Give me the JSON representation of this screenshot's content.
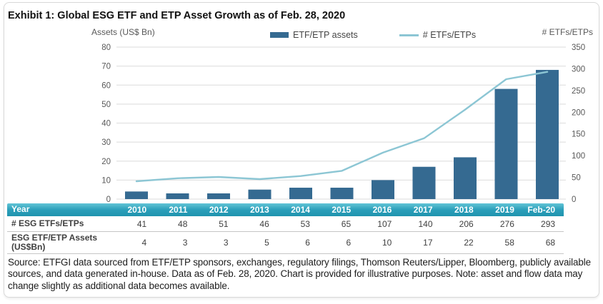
{
  "figure": {
    "title": "Exhibit 1: Global ESG ETF and ETP Asset Growth as of Feb. 28, 2020",
    "source_note": "Source: ETFGI data sourced from ETF/ETP sponsors, exchanges, regulatory filings, Thomson Reuters/Lipper, Bloomberg, publicly available sources, and data generated in-house. Data as of Feb. 28, 2020. Chart is provided for illustrative purposes. Note: asset and flow data may change slightly as additional data becomes available."
  },
  "chart_data": {
    "type": "bar",
    "subtype": "combo-bar-line",
    "categories": [
      "2010",
      "2011",
      "2012",
      "2013",
      "2014",
      "2015",
      "2016",
      "2017",
      "2018",
      "2019",
      "Feb-20"
    ],
    "series": [
      {
        "name": "ETF/ETP assets",
        "type": "bar",
        "axis": "left",
        "values": [
          4,
          3,
          3,
          5,
          6,
          6,
          10,
          17,
          22,
          58,
          68
        ]
      },
      {
        "name": "# ETFs/ETPs",
        "type": "line",
        "axis": "right",
        "values": [
          41,
          48,
          51,
          46,
          53,
          65,
          107,
          140,
          206,
          276,
          293
        ]
      }
    ],
    "left_axis": {
      "title": "Assets (US$ Bn)",
      "min": 0,
      "max": 80,
      "ticks": [
        0,
        10,
        20,
        30,
        40,
        50,
        60,
        70,
        80
      ]
    },
    "right_axis": {
      "title": "# ETFs/ETPs",
      "min": 0,
      "max": 350,
      "ticks": [
        0,
        50,
        100,
        150,
        200,
        250,
        300,
        350
      ]
    },
    "grid": true,
    "legend_position": "top-center"
  },
  "table": {
    "header_row": {
      "label": "Year",
      "values": [
        "2010",
        "2011",
        "2012",
        "2013",
        "2014",
        "2015",
        "2016",
        "2017",
        "2018",
        "2019",
        "Feb-20"
      ]
    },
    "rows": [
      {
        "label": "# ESG ETFs/ETPs",
        "values": [
          "41",
          "48",
          "51",
          "46",
          "53",
          "65",
          "107",
          "140",
          "206",
          "276",
          "293"
        ]
      },
      {
        "label": "ESG ETF/ETP Assets (US$Bn)",
        "values": [
          "4",
          "3",
          "3",
          "5",
          "6",
          "6",
          "10",
          "17",
          "22",
          "58",
          "68"
        ]
      }
    ]
  },
  "colors": {
    "bar": "#356a91",
    "line": "#8cc6d4",
    "grid": "#e2e2e2",
    "axis_text": "#595959",
    "table_header_top": "#62c4d6",
    "table_header_mid": "#2b9fba",
    "table_header_bottom": "#1f93ae"
  }
}
